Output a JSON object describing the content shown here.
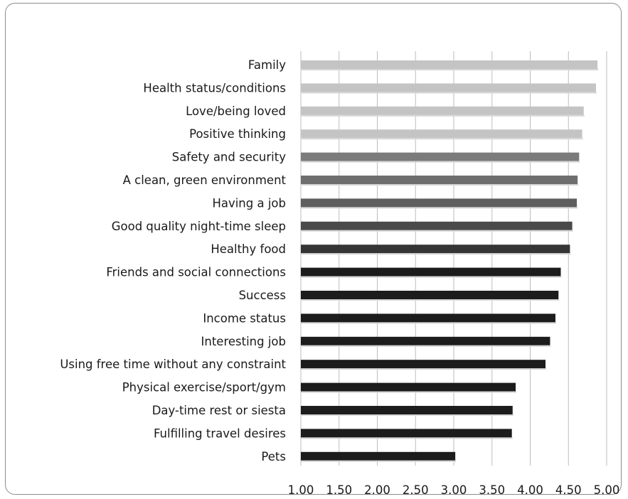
{
  "chart_data": {
    "type": "bar",
    "orientation": "horizontal",
    "title": "",
    "xlabel": "",
    "ylabel": "",
    "xlim": [
      1.0,
      5.0
    ],
    "x_ticks": [
      "1.00",
      "1.50",
      "2.00",
      "2.50",
      "3.00",
      "3.50",
      "4.00",
      "4.50",
      "5.00"
    ],
    "grid": "vertical",
    "legend": "none",
    "categories": [
      "Family",
      "Health status/conditions",
      "Love/being loved",
      "Positive thinking",
      "Safety and security",
      "A clean, green environment",
      "Having a job",
      "Good quality night-time sleep",
      "Healthy food",
      "Friends and social connections",
      "Success",
      "Income status",
      "Interesting job",
      "Using free time without any constraint",
      "Physical exercise/sport/gym",
      "Day-time rest or siesta",
      "Fulfilling travel desires",
      "Pets"
    ],
    "values": [
      4.88,
      4.86,
      4.7,
      4.68,
      4.64,
      4.62,
      4.61,
      4.55,
      4.52,
      4.4,
      4.37,
      4.33,
      4.26,
      4.2,
      3.81,
      3.77,
      3.76,
      3.02
    ],
    "bar_colors": [
      "#c4c4c4",
      "#c4c4c4",
      "#c4c4c4",
      "#c4c4c4",
      "#7b7b7b",
      "#6e6e6e",
      "#5e5e5e",
      "#4a4a4a",
      "#353535",
      "#1c1c1c",
      "#1c1c1c",
      "#1c1c1c",
      "#1c1c1c",
      "#1c1c1c",
      "#1c1c1c",
      "#1c1c1c",
      "#1c1c1c",
      "#1c1c1c"
    ],
    "gridline_color": "#bdbdbd"
  }
}
